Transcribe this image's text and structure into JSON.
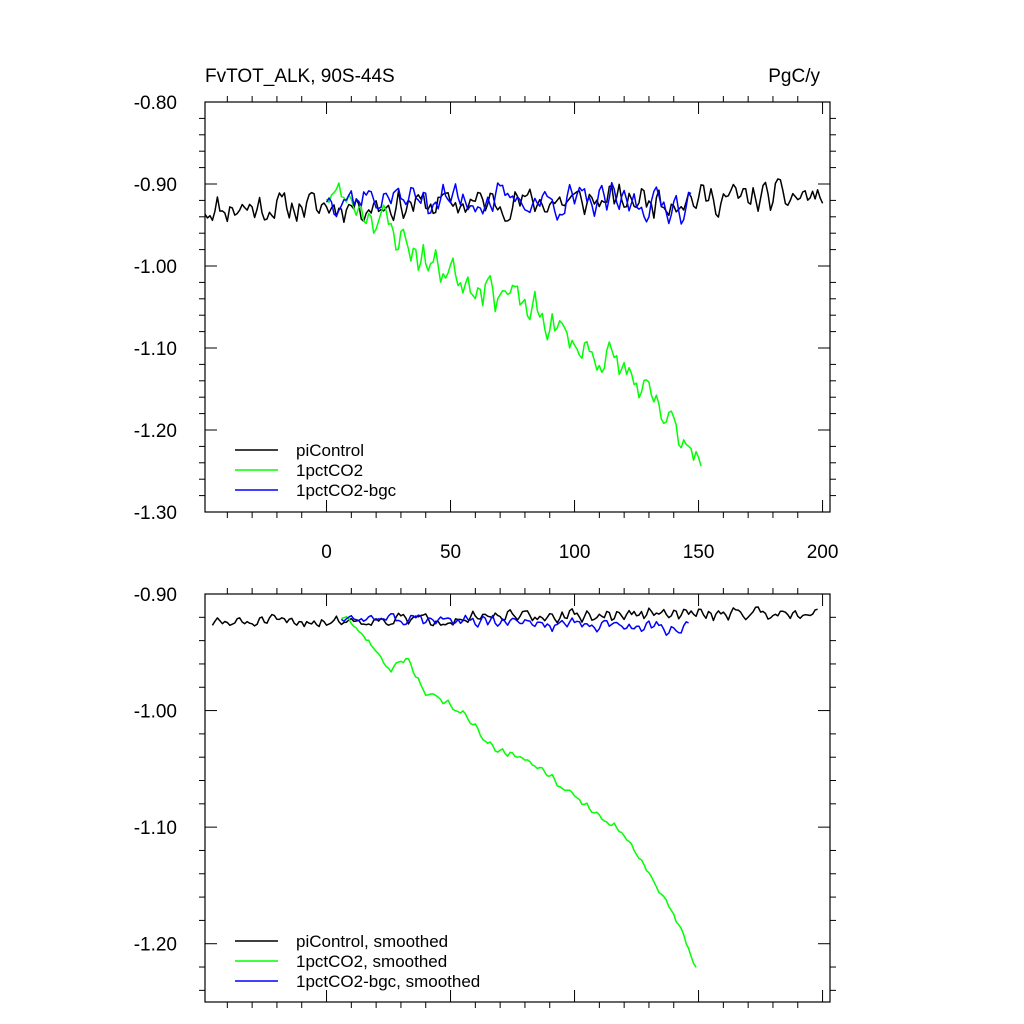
{
  "chart_data": [
    {
      "type": "line",
      "title_left": "FvTOT_ALK, 90S-44S",
      "title_right": "PgC/y",
      "xlim": [
        -49,
        203
      ],
      "ylim": [
        -1.3,
        -0.8
      ],
      "xticks": [
        0,
        50,
        100,
        150,
        200
      ],
      "xtick_labels": [
        "0",
        "50",
        "100",
        "150",
        "200"
      ],
      "yticks": [
        -1.3,
        -1.2,
        -1.1,
        -1.0,
        -0.9,
        -0.8
      ],
      "ytick_labels": [
        "-1.30",
        "-1.20",
        "-1.10",
        "-1.00",
        "-0.90",
        "-0.80"
      ],
      "legend_position": "bottom-left",
      "series": [
        {
          "name": "piControl",
          "color": "#000000",
          "x_start": -49,
          "x_end": 200,
          "x_step": 1,
          "anchors": [
            [
              -49,
              -0.93
            ],
            [
              200,
              -0.915
            ]
          ],
          "noise_amp": 0.024,
          "seed": 11
        },
        {
          "name": "1pctCO2",
          "color": "#00ff00",
          "x_start": 0,
          "x_end": 151,
          "x_step": 1,
          "anchors": [
            [
              0,
              -0.91
            ],
            [
              10,
              -0.92
            ],
            [
              20,
              -0.94
            ],
            [
              30,
              -0.965
            ],
            [
              40,
              -0.995
            ],
            [
              50,
              -1.005
            ],
            [
              60,
              -1.02
            ],
            [
              70,
              -1.03
            ],
            [
              80,
              -1.05
            ],
            [
              90,
              -1.07
            ],
            [
              100,
              -1.095
            ],
            [
              110,
              -1.11
            ],
            [
              120,
              -1.125
            ],
            [
              130,
              -1.165
            ],
            [
              140,
              -1.2
            ],
            [
              151,
              -1.225
            ]
          ],
          "noise_amp": 0.03,
          "seed": 23
        },
        {
          "name": "1pctCO2-bgc",
          "color": "#0000ff",
          "x_start": 0,
          "x_end": 147,
          "x_step": 1,
          "anchors": [
            [
              0,
              -0.915
            ],
            [
              147,
              -0.925
            ]
          ],
          "noise_amp": 0.026,
          "seed": 37
        }
      ]
    },
    {
      "type": "line",
      "xlim": [
        -49,
        203
      ],
      "ylim": [
        -1.25,
        -0.9
      ],
      "xticks": [
        0,
        50,
        100,
        150,
        200
      ],
      "yticks": [
        -1.2,
        -1.1,
        -1.0,
        -0.9
      ],
      "ytick_labels": [
        "-1.20",
        "-1.10",
        "-1.00",
        "-0.90"
      ],
      "legend_position": "bottom-left",
      "series": [
        {
          "name": "piControl, smoothed",
          "color": "#000000",
          "x_start": -46,
          "x_end": 198,
          "x_step": 1,
          "anchors": [
            [
              -46,
              -0.925
            ],
            [
              198,
              -0.915
            ]
          ],
          "noise_amp": 0.007,
          "seed": 51
        },
        {
          "name": "1pctCO2, smoothed",
          "color": "#00ff00",
          "x_start": 6,
          "x_end": 149,
          "x_step": 1,
          "anchors": [
            [
              6,
              -0.92
            ],
            [
              15,
              -0.935
            ],
            [
              20,
              -0.95
            ],
            [
              26,
              -0.965
            ],
            [
              32,
              -0.955
            ],
            [
              35,
              -0.965
            ],
            [
              40,
              -0.985
            ],
            [
              45,
              -0.99
            ],
            [
              55,
              -1.0
            ],
            [
              62,
              -1.02
            ],
            [
              70,
              -1.035
            ],
            [
              80,
              -1.04
            ],
            [
              90,
              -1.055
            ],
            [
              100,
              -1.075
            ],
            [
              110,
              -1.09
            ],
            [
              120,
              -1.105
            ],
            [
              130,
              -1.14
            ],
            [
              140,
              -1.175
            ],
            [
              149,
              -1.22
            ]
          ],
          "noise_amp": 0.004,
          "seed": 63
        },
        {
          "name": "1pctCO2-bgc, smoothed",
          "color": "#0000ff",
          "x_start": 6,
          "x_end": 146,
          "x_step": 1,
          "anchors": [
            [
              6,
              -0.92
            ],
            [
              146,
              -0.93
            ]
          ],
          "noise_amp": 0.007,
          "seed": 77
        }
      ]
    }
  ]
}
